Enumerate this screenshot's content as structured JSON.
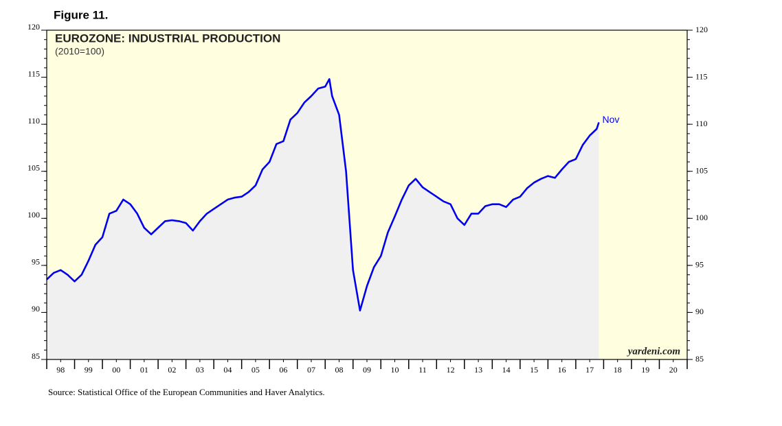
{
  "chart_data": {
    "type": "line",
    "figure": "Figure 11.",
    "title": "EUROZONE: INDUSTRIAL PRODUCTION",
    "subtitle": "(2010=100)",
    "source": "Source: Statistical Office of the European Communities and Haver Analytics.",
    "watermark": "yardeni.com",
    "annotation": "Nov",
    "color": "#0000ee",
    "x": [
      1998.0,
      1998.25,
      1998.5,
      1998.75,
      1999.0,
      1999.25,
      1999.5,
      1999.75,
      2000.0,
      2000.25,
      2000.5,
      2000.75,
      2001.0,
      2001.25,
      2001.5,
      2001.75,
      2002.0,
      2002.25,
      2002.5,
      2002.75,
      2003.0,
      2003.25,
      2003.5,
      2003.75,
      2004.0,
      2004.25,
      2004.5,
      2004.75,
      2005.0,
      2005.25,
      2005.5,
      2005.75,
      2006.0,
      2006.25,
      2006.5,
      2006.75,
      2007.0,
      2007.25,
      2007.5,
      2007.75,
      2008.0,
      2008.15,
      2008.25,
      2008.5,
      2008.75,
      2009.0,
      2009.25,
      2009.5,
      2009.75,
      2010.0,
      2010.25,
      2010.5,
      2010.75,
      2011.0,
      2011.25,
      2011.5,
      2011.75,
      2012.0,
      2012.25,
      2012.5,
      2012.75,
      2013.0,
      2013.25,
      2013.5,
      2013.75,
      2014.0,
      2014.25,
      2014.5,
      2014.75,
      2015.0,
      2015.25,
      2015.5,
      2015.75,
      2016.0,
      2016.25,
      2016.5,
      2016.75,
      2017.0,
      2017.25,
      2017.5,
      2017.75,
      2017.83
    ],
    "values": [
      93.5,
      94.2,
      94.5,
      94.0,
      93.3,
      94.0,
      95.5,
      97.2,
      98.0,
      100.5,
      100.8,
      102.0,
      101.5,
      100.5,
      99.0,
      98.3,
      99.0,
      99.7,
      99.8,
      99.7,
      99.5,
      98.7,
      99.7,
      100.5,
      101.0,
      101.5,
      102.0,
      102.2,
      102.3,
      102.8,
      103.5,
      105.2,
      106.0,
      107.9,
      108.2,
      110.5,
      111.2,
      112.3,
      113.0,
      113.8,
      114.0,
      114.8,
      113.0,
      111.0,
      105.0,
      94.5,
      90.2,
      92.8,
      94.8,
      96.0,
      98.5,
      100.2,
      102.0,
      103.5,
      104.2,
      103.3,
      102.8,
      102.3,
      101.8,
      101.5,
      100.0,
      99.3,
      100.5,
      100.5,
      101.3,
      101.5,
      101.5,
      101.2,
      102.0,
      102.3,
      103.2,
      103.8,
      104.2,
      104.5,
      104.3,
      105.2,
      106.0,
      106.3,
      107.8,
      108.8,
      109.5,
      110.2
    ],
    "xlim": [
      1998,
      2021
    ],
    "xticks": [
      {
        "value": 1998.5,
        "label": "98"
      },
      {
        "value": 1999.5,
        "label": "99"
      },
      {
        "value": 2000.5,
        "label": "00"
      },
      {
        "value": 2001.5,
        "label": "01"
      },
      {
        "value": 2002.5,
        "label": "02"
      },
      {
        "value": 2003.5,
        "label": "03"
      },
      {
        "value": 2004.5,
        "label": "04"
      },
      {
        "value": 2005.5,
        "label": "05"
      },
      {
        "value": 2006.5,
        "label": "06"
      },
      {
        "value": 2007.5,
        "label": "07"
      },
      {
        "value": 2008.5,
        "label": "08"
      },
      {
        "value": 2009.5,
        "label": "09"
      },
      {
        "value": 2010.5,
        "label": "10"
      },
      {
        "value": 2011.5,
        "label": "11"
      },
      {
        "value": 2012.5,
        "label": "12"
      },
      {
        "value": 2013.5,
        "label": "13"
      },
      {
        "value": 2014.5,
        "label": "14"
      },
      {
        "value": 2015.5,
        "label": "15"
      },
      {
        "value": 2016.5,
        "label": "16"
      },
      {
        "value": 2017.5,
        "label": "17"
      },
      {
        "value": 2018.5,
        "label": "18"
      },
      {
        "value": 2019.5,
        "label": "19"
      },
      {
        "value": 2020.5,
        "label": "20"
      }
    ],
    "ylim": [
      85,
      120
    ],
    "yticks": [
      85,
      90,
      95,
      100,
      105,
      110,
      115,
      120
    ]
  }
}
